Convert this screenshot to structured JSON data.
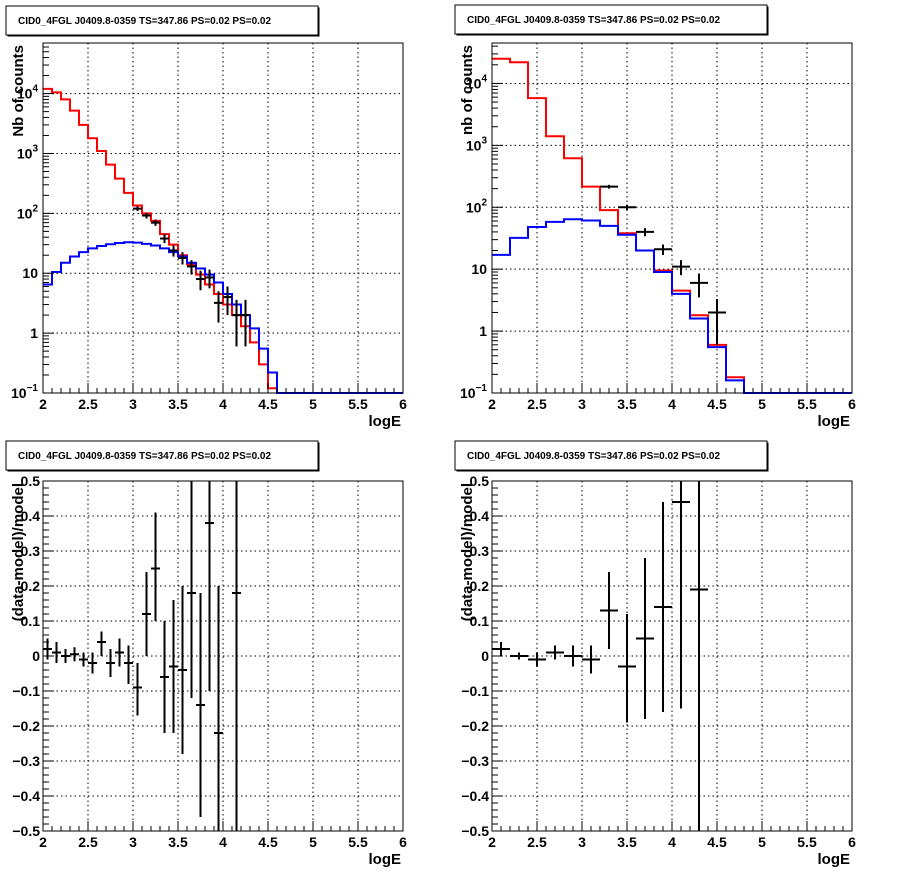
{
  "chart_data": [
    {
      "type": "line",
      "title": "CID0_4FGL J0409.8-0359 TS=347.86 PS=0.02 PS=0.02",
      "xlabel": "logE",
      "ylabel": "Nb of counts",
      "xlim": [
        2,
        6
      ],
      "ylim": [
        0.1,
        70000
      ],
      "y_scale": "log",
      "grid": true,
      "x_ticks": [
        "2",
        "2.5",
        "3",
        "3.5",
        "4",
        "4.5",
        "5",
        "5.5",
        "6"
      ],
      "y_ticks": [
        {
          "value": 0.1,
          "base": "10",
          "exp": "−1"
        },
        {
          "value": 1,
          "label": "1"
        },
        {
          "value": 10,
          "label": "10"
        },
        {
          "value": 100,
          "base": "10",
          "exp": "2"
        },
        {
          "value": 1000,
          "base": "10",
          "exp": "3"
        },
        {
          "value": 10000,
          "base": "10",
          "exp": "4"
        }
      ],
      "bin_edges": [
        2.0,
        2.1,
        2.2,
        2.3,
        2.4,
        2.5,
        2.6,
        2.7,
        2.8,
        2.9,
        3.0,
        3.1,
        3.2,
        3.3,
        3.4,
        3.5,
        3.6,
        3.7,
        3.8,
        3.9,
        4.0,
        4.1,
        4.2,
        4.3,
        4.4,
        4.5,
        4.6,
        4.7,
        4.8,
        4.9,
        5.0,
        5.1,
        5.2,
        5.3,
        5.4,
        5.5,
        5.6,
        5.7,
        5.8,
        5.9,
        6.0
      ],
      "series": [
        {
          "color": "#ff0000",
          "values": [
            12000,
            10500,
            8000,
            5200,
            3000,
            1800,
            1100,
            650,
            380,
            220,
            135,
            100,
            75,
            45,
            30,
            20,
            14,
            9.5,
            6.5,
            4.5,
            3.0,
            2.0,
            1.3,
            0.7,
            0.3,
            0.12,
            0.1,
            0.1,
            0.1,
            0.1,
            0.1,
            0.1,
            0.1,
            0.1,
            0.1,
            0.1,
            0.1,
            0.1,
            0.1,
            0.1
          ]
        },
        {
          "color": "#0000ff",
          "values": [
            6.5,
            10.5,
            15,
            19,
            22.5,
            26,
            28.5,
            30.5,
            32,
            33,
            32.5,
            31,
            29,
            26,
            22.5,
            19,
            15,
            12,
            9.5,
            7,
            4.5,
            3.0,
            2.0,
            1.2,
            0.55,
            0.22,
            0.1,
            0.1,
            0.1,
            0.1,
            0.1,
            0.1,
            0.1,
            0.1,
            0.1,
            0.1,
            0.1,
            0.1,
            0.1,
            0.1
          ]
        }
      ],
      "data_points": [
        {
          "x": 3.05,
          "y": 120,
          "xerr": 0.05,
          "ylo": 110,
          "yhi": 131
        },
        {
          "x": 3.15,
          "y": 92,
          "xerr": 0.05,
          "ylo": 82,
          "yhi": 102
        },
        {
          "x": 3.25,
          "y": 70,
          "xerr": 0.05,
          "ylo": 62,
          "yhi": 79
        },
        {
          "x": 3.35,
          "y": 38,
          "xerr": 0.05,
          "ylo": 32,
          "yhi": 45
        },
        {
          "x": 3.45,
          "y": 24,
          "xerr": 0.05,
          "ylo": 19,
          "yhi": 29
        },
        {
          "x": 3.55,
          "y": 18,
          "xerr": 0.05,
          "ylo": 14,
          "yhi": 22.5
        },
        {
          "x": 3.65,
          "y": 13,
          "xerr": 0.05,
          "ylo": 9.5,
          "yhi": 16.5
        },
        {
          "x": 3.75,
          "y": 8,
          "xerr": 0.05,
          "ylo": 5.2,
          "yhi": 11
        },
        {
          "x": 3.85,
          "y": 8.5,
          "xerr": 0.05,
          "ylo": 5.6,
          "yhi": 11.5
        },
        {
          "x": 3.95,
          "y": 3.2,
          "xerr": 0.05,
          "ylo": 1.5,
          "yhi": 5.0
        },
        {
          "x": 4.05,
          "y": 4.0,
          "xerr": 0.05,
          "ylo": 2.0,
          "yhi": 6.0
        },
        {
          "x": 4.15,
          "y": 2.0,
          "xerr": 0.05,
          "ylo": 0.6,
          "yhi": 3.6
        },
        {
          "x": 4.25,
          "y": 2.0,
          "xerr": 0.05,
          "ylo": 0.6,
          "yhi": 3.6
        }
      ]
    },
    {
      "type": "line",
      "title": "CID0_4FGL J0409.8-0359 TS=347.86 PS=0.02 PS=0.02",
      "xlabel": "logE",
      "ylabel": "nb of counts",
      "xlim": [
        2,
        6
      ],
      "ylim": [
        0.1,
        45000
      ],
      "y_scale": "log",
      "grid": true,
      "x_ticks": [
        "2",
        "2.5",
        "3",
        "3.5",
        "4",
        "4.5",
        "5",
        "5.5",
        "6"
      ],
      "y_ticks": [
        {
          "value": 0.1,
          "base": "10",
          "exp": "−1"
        },
        {
          "value": 1,
          "label": "1"
        },
        {
          "value": 10,
          "label": "10"
        },
        {
          "value": 100,
          "base": "10",
          "exp": "2"
        },
        {
          "value": 1000,
          "base": "10",
          "exp": "3"
        },
        {
          "value": 10000,
          "base": "10",
          "exp": "4"
        }
      ],
      "bin_edges": [
        2.0,
        2.2,
        2.4,
        2.6,
        2.8,
        3.0,
        3.2,
        3.4,
        3.6,
        3.8,
        4.0,
        4.2,
        4.4,
        4.6,
        4.8,
        5.0,
        5.2,
        5.4,
        5.6,
        5.8,
        6.0
      ],
      "series": [
        {
          "color": "#ff0000",
          "values": [
            25000,
            22000,
            5800,
            1400,
            620,
            215,
            90,
            38,
            20,
            9.5,
            4.5,
            1.8,
            0.6,
            0.18,
            0.1,
            0.1,
            0.1,
            0.1,
            0.1,
            0.1
          ]
        },
        {
          "color": "#0000ff",
          "values": [
            17,
            32,
            48,
            58,
            64,
            61,
            50,
            36,
            20,
            9.0,
            4.0,
            1.6,
            0.55,
            0.16,
            0.1,
            0.1,
            0.1,
            0.1,
            0.1,
            0.1
          ]
        }
      ],
      "data_points": [
        {
          "x": 3.3,
          "y": 215,
          "xerr": 0.1,
          "ylo": 200,
          "yhi": 230
        },
        {
          "x": 3.5,
          "y": 100,
          "xerr": 0.1,
          "ylo": 90,
          "yhi": 110
        },
        {
          "x": 3.7,
          "y": 40,
          "xerr": 0.1,
          "ylo": 34,
          "yhi": 46
        },
        {
          "x": 3.9,
          "y": 21,
          "xerr": 0.1,
          "ylo": 17,
          "yhi": 25
        },
        {
          "x": 4.1,
          "y": 11,
          "xerr": 0.1,
          "ylo": 8,
          "yhi": 14
        },
        {
          "x": 4.3,
          "y": 6,
          "xerr": 0.1,
          "ylo": 3.5,
          "yhi": 8.5
        },
        {
          "x": 4.5,
          "y": 2.0,
          "xerr": 0.1,
          "ylo": 0.6,
          "yhi": 3.3
        }
      ]
    },
    {
      "type": "scatter",
      "title": "CID0_4FGL J0409.8-0359 TS=347.86 PS=0.02 PS=0.02",
      "xlabel": "logE",
      "ylabel": "(data-model)/model",
      "xlim": [
        2,
        6
      ],
      "ylim": [
        -0.5,
        0.5
      ],
      "grid": true,
      "x_ticks": [
        "2",
        "2.5",
        "3",
        "3.5",
        "4",
        "4.5",
        "5",
        "5.5",
        "6"
      ],
      "y_ticks": [
        "−0.5",
        "−0.4",
        "−0.3",
        "−0.2",
        "−0.1",
        "0",
        "0.1",
        "0.2",
        "0.3",
        "0.4",
        "0.5"
      ],
      "data_points": [
        {
          "x": 2.05,
          "y": 0.02,
          "xerr": 0.05,
          "ylo": -0.01,
          "yhi": 0.05
        },
        {
          "x": 2.15,
          "y": 0.01,
          "xerr": 0.05,
          "ylo": -0.02,
          "yhi": 0.04
        },
        {
          "x": 2.25,
          "y": 0.0,
          "xerr": 0.05,
          "ylo": -0.02,
          "yhi": 0.02
        },
        {
          "x": 2.35,
          "y": 0.005,
          "xerr": 0.05,
          "ylo": -0.015,
          "yhi": 0.025
        },
        {
          "x": 2.45,
          "y": -0.01,
          "xerr": 0.05,
          "ylo": -0.03,
          "yhi": 0.01
        },
        {
          "x": 2.55,
          "y": -0.02,
          "xerr": 0.05,
          "ylo": -0.05,
          "yhi": 0.01
        },
        {
          "x": 2.65,
          "y": 0.04,
          "xerr": 0.05,
          "ylo": 0.0,
          "yhi": 0.07
        },
        {
          "x": 2.75,
          "y": -0.02,
          "xerr": 0.05,
          "ylo": -0.06,
          "yhi": 0.02
        },
        {
          "x": 2.85,
          "y": 0.01,
          "xerr": 0.05,
          "ylo": -0.03,
          "yhi": 0.05
        },
        {
          "x": 2.95,
          "y": -0.02,
          "xerr": 0.05,
          "ylo": -0.08,
          "yhi": 0.03
        },
        {
          "x": 3.05,
          "y": -0.09,
          "xerr": 0.05,
          "ylo": -0.17,
          "yhi": -0.02
        },
        {
          "x": 3.15,
          "y": 0.12,
          "xerr": 0.05,
          "ylo": 0.0,
          "yhi": 0.24
        },
        {
          "x": 3.25,
          "y": 0.25,
          "xerr": 0.05,
          "ylo": 0.1,
          "yhi": 0.41
        },
        {
          "x": 3.35,
          "y": -0.06,
          "xerr": 0.05,
          "ylo": -0.22,
          "yhi": 0.1
        },
        {
          "x": 3.45,
          "y": -0.03,
          "xerr": 0.05,
          "ylo": -0.22,
          "yhi": 0.16
        },
        {
          "x": 3.55,
          "y": -0.04,
          "xerr": 0.05,
          "ylo": -0.28,
          "yhi": 0.2
        },
        {
          "x": 3.65,
          "y": 0.18,
          "xerr": 0.05,
          "ylo": -0.12,
          "yhi": 0.5
        },
        {
          "x": 3.75,
          "y": -0.14,
          "xerr": 0.05,
          "ylo": -0.46,
          "yhi": 0.18
        },
        {
          "x": 3.85,
          "y": 0.38,
          "xerr": 0.05,
          "ylo": -0.1,
          "yhi": 0.5
        },
        {
          "x": 3.95,
          "y": -0.22,
          "xerr": 0.05,
          "ylo": -0.5,
          "yhi": 0.2
        },
        {
          "x": 4.15,
          "y": 0.18,
          "xerr": 0.05,
          "ylo": -0.5,
          "yhi": 0.5
        }
      ]
    },
    {
      "type": "scatter",
      "title": "CID0_4FGL J0409.8-0359 TS=347.86 PS=0.02 PS=0.02",
      "xlabel": "logE",
      "ylabel": "(data-model)/model",
      "xlim": [
        2,
        6
      ],
      "ylim": [
        -0.5,
        0.5
      ],
      "grid": true,
      "x_ticks": [
        "2",
        "2.5",
        "3",
        "3.5",
        "4",
        "4.5",
        "5",
        "5.5",
        "6"
      ],
      "y_ticks": [
        "−0.5",
        "−0.4",
        "−0.3",
        "−0.2",
        "−0.1",
        "0",
        "0.1",
        "0.2",
        "0.3",
        "0.4",
        "0.5"
      ],
      "data_points": [
        {
          "x": 2.1,
          "y": 0.02,
          "xerr": 0.1,
          "ylo": 0.0,
          "yhi": 0.04
        },
        {
          "x": 2.3,
          "y": 0.0,
          "xerr": 0.1,
          "ylo": -0.01,
          "yhi": 0.01
        },
        {
          "x": 2.5,
          "y": -0.01,
          "xerr": 0.1,
          "ylo": -0.03,
          "yhi": 0.01
        },
        {
          "x": 2.7,
          "y": 0.01,
          "xerr": 0.1,
          "ylo": -0.01,
          "yhi": 0.03
        },
        {
          "x": 2.9,
          "y": 0.0,
          "xerr": 0.1,
          "ylo": -0.03,
          "yhi": 0.03
        },
        {
          "x": 3.1,
          "y": -0.01,
          "xerr": 0.1,
          "ylo": -0.05,
          "yhi": 0.03
        },
        {
          "x": 3.3,
          "y": 0.13,
          "xerr": 0.1,
          "ylo": 0.02,
          "yhi": 0.24
        },
        {
          "x": 3.5,
          "y": -0.03,
          "xerr": 0.1,
          "ylo": -0.19,
          "yhi": 0.12
        },
        {
          "x": 3.7,
          "y": 0.05,
          "xerr": 0.1,
          "ylo": -0.18,
          "yhi": 0.28
        },
        {
          "x": 3.9,
          "y": 0.14,
          "xerr": 0.1,
          "ylo": -0.16,
          "yhi": 0.44
        },
        {
          "x": 4.1,
          "y": 0.44,
          "xerr": 0.1,
          "ylo": -0.15,
          "yhi": 0.5
        },
        {
          "x": 4.3,
          "y": 0.19,
          "xerr": 0.1,
          "ylo": -0.5,
          "yhi": 0.5
        }
      ]
    }
  ]
}
